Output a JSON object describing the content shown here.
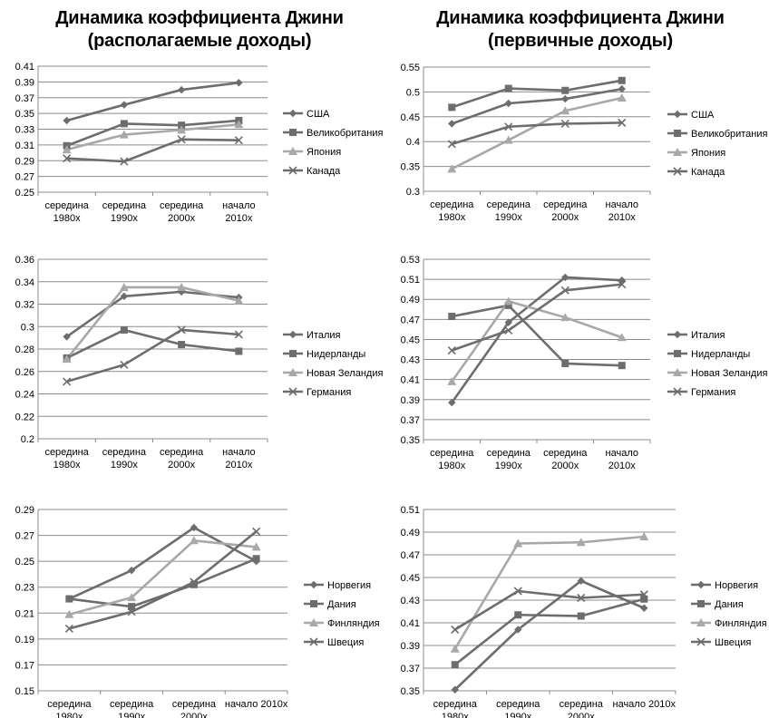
{
  "titles": {
    "left_line1": "Динамика коэффициента Джини",
    "left_line2": "(располагаемые доходы)",
    "right_line1": "Динамика коэффициента Джини",
    "right_line2": "(первичные доходы)"
  },
  "style": {
    "series_colors": [
      "#6d6d6d",
      "#6d6d6d",
      "#a8a8a8",
      "#6d6d6d"
    ],
    "markers": [
      "diamond",
      "square",
      "triangle",
      "x"
    ],
    "grid_color": "#8c8c8c",
    "axis_color": "#8c8c8c"
  },
  "chart_data": [
    {
      "type": "line",
      "categories": [
        [
          "середина",
          "1980х"
        ],
        [
          "середина",
          "1990х"
        ],
        [
          "середина",
          "2000х"
        ],
        [
          "начало",
          "2010х"
        ]
      ],
      "ylim": [
        0.25,
        0.41
      ],
      "ystep": 0.02,
      "decimals": 2,
      "legend_position": "right",
      "series": [
        {
          "name": "США",
          "values": [
            0.341,
            0.361,
            0.38,
            0.389
          ]
        },
        {
          "name": "Великобритания",
          "values": [
            0.309,
            0.337,
            0.335,
            0.341
          ]
        },
        {
          "name": "Япония",
          "values": [
            0.304,
            0.323,
            0.329,
            0.336
          ]
        },
        {
          "name": "Канада",
          "values": [
            0.293,
            0.289,
            0.317,
            0.316
          ]
        }
      ]
    },
    {
      "type": "line",
      "categories": [
        [
          "середина",
          "1980х"
        ],
        [
          "середина",
          "1990х"
        ],
        [
          "середина",
          "2000х"
        ],
        [
          "начало",
          "2010х"
        ]
      ],
      "ylim": [
        0.3,
        0.55
      ],
      "ystep": 0.05,
      "decimals": 2,
      "legend_position": "right",
      "series": [
        {
          "name": "США",
          "values": [
            0.436,
            0.477,
            0.486,
            0.506
          ]
        },
        {
          "name": "Великобритания",
          "values": [
            0.469,
            0.507,
            0.503,
            0.523
          ]
        },
        {
          "name": "Япония",
          "values": [
            0.345,
            0.403,
            0.462,
            0.488
          ]
        },
        {
          "name": "Канада",
          "values": [
            0.395,
            0.43,
            0.436,
            0.438
          ]
        }
      ]
    },
    {
      "type": "line",
      "categories": [
        [
          "середина",
          "1980х"
        ],
        [
          "середина",
          "1990х"
        ],
        [
          "середина",
          "2000х"
        ],
        [
          "начало",
          "2010х"
        ]
      ],
      "ylim": [
        0.2,
        0.36
      ],
      "ystep": 0.02,
      "decimals": 2,
      "legend_position": "right",
      "series": [
        {
          "name": "Италия",
          "values": [
            0.291,
            0.327,
            0.331,
            0.326
          ]
        },
        {
          "name": "Нидерланды",
          "values": [
            0.272,
            0.297,
            0.284,
            0.278
          ]
        },
        {
          "name": "Новая Зеландия",
          "values": [
            0.271,
            0.335,
            0.335,
            0.323
          ]
        },
        {
          "name": "Германия",
          "values": [
            0.251,
            0.266,
            0.297,
            0.293
          ]
        }
      ]
    },
    {
      "type": "line",
      "categories": [
        [
          "середина",
          "1980х"
        ],
        [
          "середина",
          "1990х"
        ],
        [
          "середина",
          "2000х"
        ],
        [
          "начало",
          "2010х"
        ]
      ],
      "ylim": [
        0.35,
        0.53
      ],
      "ystep": 0.02,
      "decimals": 2,
      "legend_position": "right",
      "series": [
        {
          "name": "Италия",
          "values": [
            0.387,
            0.467,
            0.512,
            0.509
          ]
        },
        {
          "name": "Нидерланды",
          "values": [
            0.473,
            0.484,
            0.426,
            0.424
          ]
        },
        {
          "name": "Новая Зеландия",
          "values": [
            0.408,
            0.488,
            0.472,
            0.452
          ]
        },
        {
          "name": "Германия",
          "values": [
            0.439,
            0.459,
            0.499,
            0.505
          ]
        }
      ]
    },
    {
      "type": "line",
      "categories": [
        [
          "середина",
          "1980х"
        ],
        [
          "середина",
          "1990х"
        ],
        [
          "середина",
          "2000х"
        ],
        [
          "начало 2010х"
        ]
      ],
      "ylim": [
        0.15,
        0.29
      ],
      "ystep": 0.02,
      "decimals": 2,
      "legend_position": "right",
      "series": [
        {
          "name": "Норвегия",
          "values": [
            0.221,
            0.243,
            0.276,
            0.25
          ]
        },
        {
          "name": "Дания",
          "values": [
            0.221,
            0.215,
            0.232,
            0.252
          ]
        },
        {
          "name": "Финляндия",
          "values": [
            0.209,
            0.222,
            0.266,
            0.261
          ]
        },
        {
          "name": "Швеция",
          "values": [
            0.198,
            0.211,
            0.234,
            0.273
          ]
        }
      ]
    },
    {
      "type": "line",
      "categories": [
        [
          "середина",
          "1980х"
        ],
        [
          "середина",
          "1990х"
        ],
        [
          "середина",
          "2000х"
        ],
        [
          "начало 2010х"
        ]
      ],
      "ylim": [
        0.35,
        0.51
      ],
      "ystep": 0.02,
      "decimals": 2,
      "legend_position": "right",
      "series": [
        {
          "name": "Норвегия",
          "values": [
            0.351,
            0.404,
            0.447,
            0.423
          ]
        },
        {
          "name": "Дания",
          "values": [
            0.373,
            0.417,
            0.416,
            0.431
          ]
        },
        {
          "name": "Финляндия",
          "values": [
            0.387,
            0.48,
            0.481,
            0.486
          ]
        },
        {
          "name": "Швеция",
          "values": [
            0.404,
            0.438,
            0.432,
            0.435
          ]
        }
      ]
    }
  ]
}
